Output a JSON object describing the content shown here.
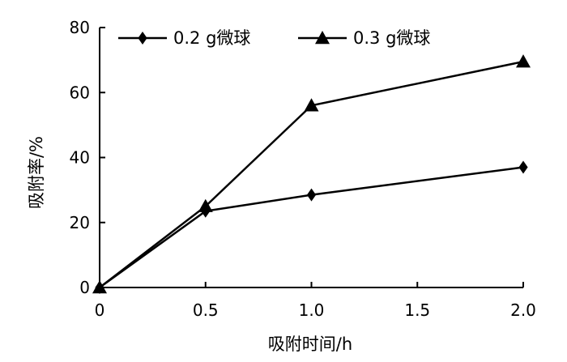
{
  "chart_data": {
    "type": "line",
    "x": [
      0,
      0.5,
      1.0,
      2.0
    ],
    "series": [
      {
        "name": "0.2 g微球",
        "marker": "diamond",
        "values": [
          0,
          23.5,
          28.5,
          37
        ]
      },
      {
        "name": "0.3 g微球",
        "marker": "triangle",
        "values": [
          0,
          25,
          56,
          69.5
        ]
      }
    ],
    "xlabel": "吸附时间/h",
    "ylabel": "吸附率/%",
    "xlim": [
      0,
      2.0
    ],
    "ylim": [
      0,
      80
    ],
    "xticks": [
      "0",
      "0.5",
      "1.0",
      "1.5",
      "2.0"
    ],
    "yticks": [
      "0",
      "20",
      "40",
      "60",
      "80"
    ],
    "grid": false,
    "legend_position": "top",
    "colors": {
      "line": "#000000",
      "background": "#ffffff"
    }
  }
}
